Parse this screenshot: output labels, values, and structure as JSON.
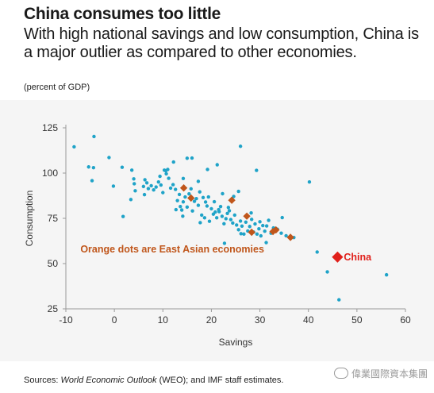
{
  "header": {
    "title": "China consumes too little",
    "subtitle": "With high national savings and low consumption, China is a major outlier as compared to other economies.",
    "units": "(percent of GDP)"
  },
  "footer": {
    "prefix": "Sources: ",
    "source_italic": "World Economic Outlook",
    "suffix": " (WEO); and IMF staff estimates."
  },
  "watermark": {
    "text": "偉業國際資本集團",
    "icon": "wechat-icon"
  },
  "chart_data": {
    "type": "scatter",
    "title": "",
    "xlabel": "Savings",
    "ylabel": "Consumption",
    "xlim": [
      -10,
      60
    ],
    "ylim": [
      25,
      125
    ],
    "xticks": [
      -10,
      0,
      10,
      20,
      30,
      40,
      50,
      60
    ],
    "yticks": [
      25,
      50,
      75,
      100,
      125
    ],
    "grid": false,
    "colors": {
      "other": "#1fa3c8",
      "east_asia": "#c0561b",
      "china": "#e0201b"
    },
    "annotations": [
      {
        "text": "Orange dots are East Asian economies",
        "x": -7,
        "y": 58,
        "color": "#c0561b"
      },
      {
        "text": "China",
        "x": 47.3,
        "y": 53.5,
        "color": "#e0201b"
      }
    ],
    "series": [
      {
        "name": "",
        "color": "#1fa3c8",
        "points": [
          [
            -8.3,
            114.5
          ],
          [
            -4.2,
            120.2
          ],
          [
            -5.3,
            103.4
          ],
          [
            -4.3,
            103.0
          ],
          [
            -4.6,
            95.8
          ],
          [
            -1.1,
            108.6
          ],
          [
            -0.2,
            92.8
          ],
          [
            1.6,
            103.2
          ],
          [
            1.8,
            76.0
          ],
          [
            3.6,
            101.6
          ],
          [
            4.0,
            96.8
          ],
          [
            4.3,
            90.2
          ],
          [
            4.1,
            94.1
          ],
          [
            3.4,
            85.4
          ],
          [
            6.0,
            92.6
          ],
          [
            6.3,
            96.3
          ],
          [
            6.7,
            94.6
          ],
          [
            7.0,
            91.4
          ],
          [
            7.6,
            93.0
          ],
          [
            8.1,
            90.7
          ],
          [
            8.6,
            92.3
          ],
          [
            9.1,
            95.1
          ],
          [
            9.6,
            93.4
          ],
          [
            10.0,
            89.2
          ],
          [
            10.3,
            101.6
          ],
          [
            10.7,
            99.6
          ],
          [
            11.0,
            102.0
          ],
          [
            11.2,
            97.1
          ],
          [
            11.6,
            91.7
          ],
          [
            12.1,
            93.6
          ],
          [
            12.6,
            91.0
          ],
          [
            13.0,
            84.8
          ],
          [
            13.4,
            88.2
          ],
          [
            13.6,
            81.5
          ],
          [
            13.9,
            79.6
          ],
          [
            14.2,
            84.1
          ],
          [
            14.6,
            86.8
          ],
          [
            15.0,
            81.2
          ],
          [
            15.4,
            88.5
          ],
          [
            15.8,
            91.3
          ],
          [
            16.1,
            79.1
          ],
          [
            16.5,
            84.4
          ],
          [
            16.9,
            85.9
          ],
          [
            17.3,
            82.2
          ],
          [
            17.6,
            89.6
          ],
          [
            18.0,
            76.8
          ],
          [
            18.3,
            86.5
          ],
          [
            18.8,
            84.0
          ],
          [
            19.1,
            81.8
          ],
          [
            19.6,
            73.4
          ],
          [
            20.0,
            80.3
          ],
          [
            20.4,
            77.3
          ],
          [
            20.8,
            78.5
          ],
          [
            21.1,
            75.3
          ],
          [
            21.5,
            79.8
          ],
          [
            21.9,
            81.5
          ],
          [
            22.2,
            76.1
          ],
          [
            22.6,
            72.0
          ],
          [
            23.0,
            74.8
          ],
          [
            23.3,
            77.7
          ],
          [
            23.7,
            79.2
          ],
          [
            24.0,
            74.3
          ],
          [
            24.4,
            72.4
          ],
          [
            24.8,
            76.8
          ],
          [
            25.2,
            71.3
          ],
          [
            25.6,
            68.7
          ],
          [
            26.0,
            73.5
          ],
          [
            26.3,
            70.7
          ],
          [
            26.7,
            66.3
          ],
          [
            27.1,
            72.9
          ],
          [
            27.5,
            68.0
          ],
          [
            27.9,
            70.5
          ],
          [
            28.3,
            74.4
          ],
          [
            28.7,
            67.4
          ],
          [
            29.0,
            71.9
          ],
          [
            29.4,
            66.3
          ],
          [
            29.8,
            69.2
          ],
          [
            30.2,
            65.3
          ],
          [
            30.6,
            71.0
          ],
          [
            31.0,
            67.9
          ],
          [
            31.4,
            70.8
          ],
          [
            31.8,
            73.9
          ],
          [
            32.3,
            66.8
          ],
          [
            32.8,
            69.7
          ],
          [
            33.6,
            69.0
          ],
          [
            34.4,
            66.8
          ],
          [
            35.4,
            65.4
          ],
          [
            37.0,
            64.4
          ],
          [
            18.6,
            75.3
          ],
          [
            20.6,
            84.2
          ],
          [
            22.3,
            88.6
          ],
          [
            21.6,
            78.7
          ],
          [
            19.4,
            86.8
          ],
          [
            17.7,
            72.6
          ],
          [
            23.5,
            81.0
          ],
          [
            26.1,
            66.5
          ],
          [
            28.2,
            78.0
          ],
          [
            30.0,
            73.1
          ],
          [
            15.0,
            108.2
          ],
          [
            16.0,
            108.3
          ],
          [
            10.6,
            101.3
          ],
          [
            14.2,
            97.0
          ],
          [
            21.2,
            104.6
          ],
          [
            26.0,
            114.8
          ],
          [
            29.3,
            101.5
          ],
          [
            24.6,
            87.1
          ],
          [
            14.1,
            76.2
          ],
          [
            12.7,
            79.8
          ],
          [
            22.7,
            61.2
          ],
          [
            31.3,
            61.6
          ],
          [
            34.6,
            75.4
          ],
          [
            25.6,
            89.9
          ],
          [
            19.2,
            102.0
          ],
          [
            12.2,
            106.1
          ],
          [
            9.4,
            98.2
          ],
          [
            17.3,
            95.4
          ],
          [
            6.2,
            88.1
          ],
          [
            40.2,
            95.1
          ],
          [
            41.8,
            56.4
          ],
          [
            43.9,
            45.4
          ],
          [
            46.3,
            30.0
          ],
          [
            56.1,
            43.8
          ]
        ]
      },
      {
        "name": "",
        "color": "#c0561b",
        "points": [
          [
            14.3,
            91.8
          ],
          [
            15.8,
            86.2
          ],
          [
            24.2,
            85.0
          ],
          [
            27.3,
            76.2
          ],
          [
            28.3,
            67.3
          ],
          [
            32.7,
            67.7
          ],
          [
            33.3,
            68.6
          ],
          [
            36.3,
            64.5
          ]
        ]
      },
      {
        "name": "China",
        "color": "#e0201b",
        "points": [
          [
            46.0,
            53.6
          ]
        ]
      }
    ]
  }
}
